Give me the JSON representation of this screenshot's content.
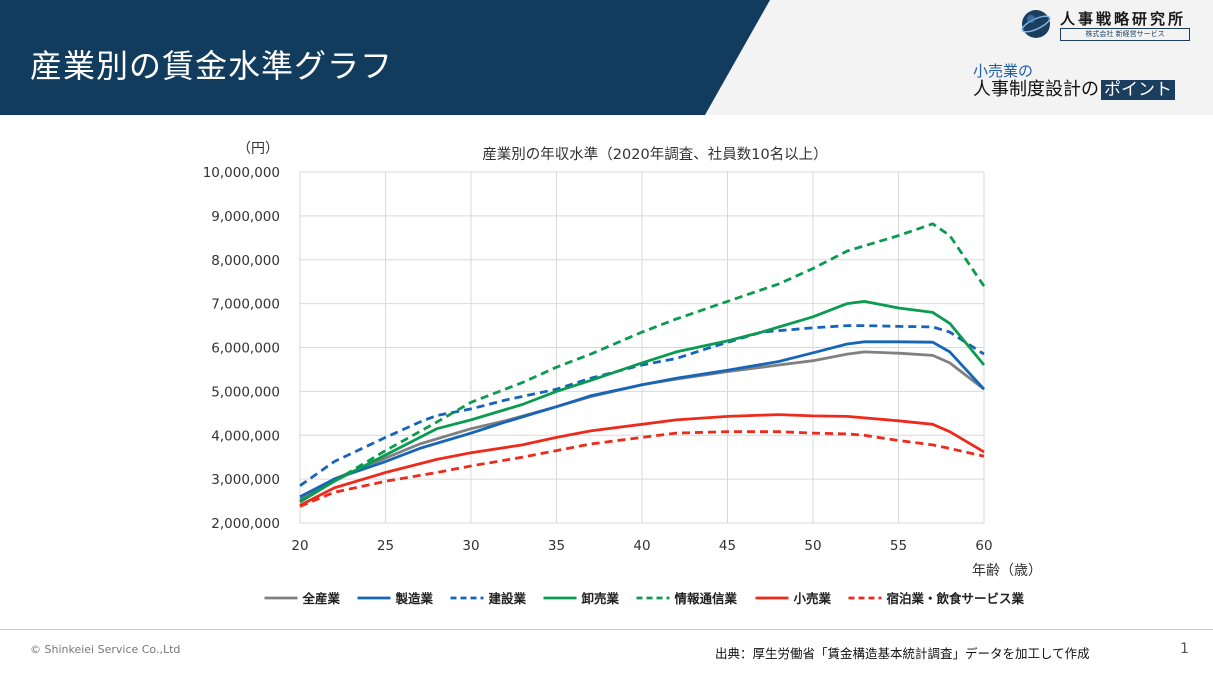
{
  "slide": {
    "title": "産業別の賃金水準グラフ",
    "brand": "人事戦略研究所",
    "brand_sub": "株式会社 新経営サービス",
    "subtitle_line1": "小売業の",
    "subtitle_line2_prefix": "人事制度設計の",
    "subtitle_line2_highlight": "ポイント",
    "copyright": "© Shinkeiei Service Co.,Ltd",
    "source": "出典：厚生労働省「賃金構造基本統計調査」データを加工して作成",
    "page_number": "1"
  },
  "colors": {
    "header": "#123c5e",
    "gray": "#808080",
    "blue": "#1565b8",
    "green": "#0a9a50",
    "red": "#ee2a1c"
  },
  "chart_data": {
    "type": "line",
    "title": "産業別の年収水準（2020年調査、社員数10名以上）",
    "ylabel": "（円）",
    "xlabel": "年齢（歳）",
    "xlim": [
      20,
      60
    ],
    "ylim": [
      2000000,
      10000000
    ],
    "xticks": [
      20,
      25,
      30,
      35,
      40,
      45,
      50,
      55,
      60
    ],
    "yticks": [
      2000000,
      3000000,
      4000000,
      5000000,
      6000000,
      7000000,
      8000000,
      9000000,
      10000000
    ],
    "ytick_labels": [
      "2,000,000",
      "3,000,000",
      "4,000,000",
      "5,000,000",
      "6,000,000",
      "7,000,000",
      "8,000,000",
      "9,000,000",
      "10,000,000"
    ],
    "grid": true,
    "legend_position": "bottom",
    "series": [
      {
        "name": "全産業",
        "color": "#808080",
        "dash": "solid",
        "points": [
          [
            20,
            2550000
          ],
          [
            22,
            3000000
          ],
          [
            25,
            3480000
          ],
          [
            27,
            3800000
          ],
          [
            30,
            4150000
          ],
          [
            32,
            4330000
          ],
          [
            35,
            4650000
          ],
          [
            37,
            4880000
          ],
          [
            40,
            5150000
          ],
          [
            42,
            5280000
          ],
          [
            45,
            5450000
          ],
          [
            48,
            5600000
          ],
          [
            50,
            5700000
          ],
          [
            52,
            5850000
          ],
          [
            53,
            5900000
          ],
          [
            55,
            5870000
          ],
          [
            57,
            5820000
          ],
          [
            58,
            5650000
          ],
          [
            60,
            5050000
          ]
        ]
      },
      {
        "name": "製造業",
        "color": "#1565b8",
        "dash": "solid",
        "points": [
          [
            20,
            2600000
          ],
          [
            22,
            3000000
          ],
          [
            25,
            3400000
          ],
          [
            27,
            3700000
          ],
          [
            30,
            4050000
          ],
          [
            32,
            4300000
          ],
          [
            35,
            4650000
          ],
          [
            37,
            4900000
          ],
          [
            40,
            5150000
          ],
          [
            42,
            5300000
          ],
          [
            45,
            5480000
          ],
          [
            48,
            5680000
          ],
          [
            50,
            5880000
          ],
          [
            52,
            6080000
          ],
          [
            53,
            6130000
          ],
          [
            55,
            6130000
          ],
          [
            57,
            6120000
          ],
          [
            58,
            5900000
          ],
          [
            60,
            5050000
          ]
        ]
      },
      {
        "name": "建設業",
        "color": "#1565b8",
        "dash": "dashed",
        "points": [
          [
            20,
            2850000
          ],
          [
            22,
            3400000
          ],
          [
            25,
            3950000
          ],
          [
            27,
            4300000
          ],
          [
            28,
            4450000
          ],
          [
            30,
            4600000
          ],
          [
            32,
            4800000
          ],
          [
            35,
            5050000
          ],
          [
            37,
            5300000
          ],
          [
            40,
            5600000
          ],
          [
            42,
            5750000
          ],
          [
            44,
            6000000
          ],
          [
            47,
            6350000
          ],
          [
            50,
            6450000
          ],
          [
            52,
            6500000
          ],
          [
            53,
            6500000
          ],
          [
            55,
            6480000
          ],
          [
            57,
            6470000
          ],
          [
            58,
            6350000
          ],
          [
            60,
            5850000
          ]
        ]
      },
      {
        "name": "卸売業",
        "color": "#0a9a50",
        "dash": "solid",
        "points": [
          [
            20,
            2480000
          ],
          [
            22,
            2950000
          ],
          [
            25,
            3550000
          ],
          [
            28,
            4150000
          ],
          [
            30,
            4350000
          ],
          [
            33,
            4700000
          ],
          [
            35,
            5000000
          ],
          [
            37,
            5250000
          ],
          [
            40,
            5650000
          ],
          [
            42,
            5900000
          ],
          [
            45,
            6150000
          ],
          [
            47,
            6350000
          ],
          [
            50,
            6700000
          ],
          [
            52,
            7000000
          ],
          [
            53,
            7050000
          ],
          [
            55,
            6900000
          ],
          [
            57,
            6800000
          ],
          [
            58,
            6550000
          ],
          [
            60,
            5600000
          ]
        ]
      },
      {
        "name": "情報通信業",
        "color": "#0a9a50",
        "dash": "dashed",
        "points": [
          [
            20,
            2500000
          ],
          [
            22,
            2950000
          ],
          [
            25,
            3650000
          ],
          [
            28,
            4300000
          ],
          [
            30,
            4750000
          ],
          [
            33,
            5200000
          ],
          [
            35,
            5550000
          ],
          [
            37,
            5850000
          ],
          [
            40,
            6350000
          ],
          [
            42,
            6650000
          ],
          [
            45,
            7050000
          ],
          [
            48,
            7450000
          ],
          [
            50,
            7800000
          ],
          [
            52,
            8200000
          ],
          [
            55,
            8550000
          ],
          [
            57,
            8820000
          ],
          [
            58,
            8550000
          ],
          [
            60,
            7400000
          ]
        ]
      },
      {
        "name": "小売業",
        "color": "#ee2a1c",
        "dash": "solid",
        "points": [
          [
            20,
            2400000
          ],
          [
            22,
            2800000
          ],
          [
            25,
            3150000
          ],
          [
            28,
            3450000
          ],
          [
            30,
            3600000
          ],
          [
            33,
            3780000
          ],
          [
            35,
            3950000
          ],
          [
            37,
            4100000
          ],
          [
            40,
            4250000
          ],
          [
            42,
            4350000
          ],
          [
            45,
            4430000
          ],
          [
            48,
            4470000
          ],
          [
            50,
            4440000
          ],
          [
            52,
            4430000
          ],
          [
            55,
            4330000
          ],
          [
            57,
            4250000
          ],
          [
            58,
            4080000
          ],
          [
            60,
            3620000
          ]
        ]
      },
      {
        "name": "宿泊業・飲食サービス業",
        "color": "#ee2a1c",
        "dash": "dashed",
        "points": [
          [
            20,
            2380000
          ],
          [
            22,
            2700000
          ],
          [
            25,
            2950000
          ],
          [
            28,
            3150000
          ],
          [
            30,
            3300000
          ],
          [
            33,
            3500000
          ],
          [
            35,
            3650000
          ],
          [
            37,
            3800000
          ],
          [
            40,
            3950000
          ],
          [
            42,
            4050000
          ],
          [
            45,
            4080000
          ],
          [
            48,
            4080000
          ],
          [
            50,
            4050000
          ],
          [
            52,
            4030000
          ],
          [
            53,
            4000000
          ],
          [
            55,
            3880000
          ],
          [
            57,
            3780000
          ],
          [
            58,
            3700000
          ],
          [
            60,
            3520000
          ]
        ]
      }
    ]
  }
}
